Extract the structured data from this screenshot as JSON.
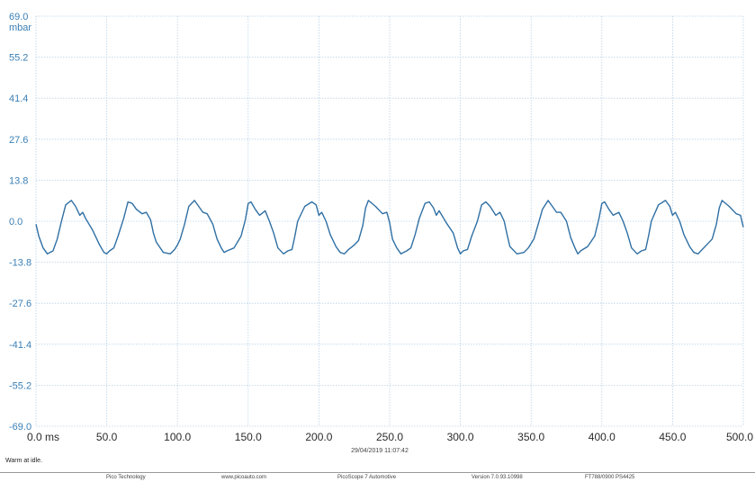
{
  "chart_data": {
    "type": "line",
    "y_unit": "mbar",
    "x_unit": "ms",
    "xlim": [
      0,
      500
    ],
    "ylim": [
      -69,
      69
    ],
    "grid": true,
    "y_ticks": [
      "69.0",
      "55.2",
      "41.4",
      "27.6",
      "13.8",
      "0.0",
      "-13.8",
      "-27.6",
      "-41.4",
      "-55.2",
      "-69.0"
    ],
    "x_ticks": [
      "0.0",
      "50.0",
      "100.0",
      "150.0",
      "200.0",
      "250.0",
      "300.0",
      "350.0",
      "400.0",
      "450.0",
      "500.0"
    ],
    "series": [
      {
        "color": "#2f6fa3",
        "x": [
          0,
          2,
          5,
          8,
          12,
          15,
          18,
          21,
          25,
          28,
          31,
          33,
          35,
          40,
          45,
          48,
          50,
          52,
          55,
          58,
          62,
          65,
          68,
          71,
          75,
          78,
          81,
          83,
          85,
          90,
          95,
          98,
          100,
          102,
          105,
          108,
          112,
          115,
          118,
          121,
          125,
          128,
          131,
          133,
          135,
          140,
          145,
          148,
          150,
          152,
          155,
          158,
          162,
          165,
          168,
          171,
          175,
          178,
          181,
          183,
          185,
          190,
          195,
          198,
          200,
          202,
          205,
          208,
          212,
          215,
          218,
          221,
          225,
          228,
          231,
          233,
          235,
          240,
          245,
          248,
          250,
          252,
          255,
          258,
          262,
          265,
          268,
          271,
          275,
          278,
          281,
          283,
          285,
          290,
          295,
          298,
          300,
          302,
          305,
          308,
          312,
          315,
          318,
          321,
          325,
          328,
          331,
          333,
          335,
          340,
          345,
          348,
          350,
          352,
          355,
          358,
          362,
          365,
          368,
          371,
          375,
          378,
          381,
          383,
          385,
          390,
          395,
          398,
          400,
          402,
          405,
          408,
          412,
          415,
          418,
          421,
          425,
          428,
          431,
          433,
          435,
          440,
          445,
          448,
          450,
          452,
          455,
          458,
          462,
          465,
          468,
          471,
          475,
          478,
          481,
          483,
          485,
          490,
          495,
          498,
          500
        ],
        "y": [
          -1.0,
          -5.0,
          -9.0,
          -11.0,
          -10.0,
          -6.0,
          0.0,
          5.5,
          7.0,
          5.0,
          2.0,
          3.0,
          1.0,
          -3.0,
          -8.0,
          -10.5,
          -11.0,
          -10.0,
          -9.0,
          -5.0,
          1.0,
          6.5,
          6.0,
          4.0,
          2.5,
          3.0,
          0.5,
          -4.0,
          -7.0,
          -10.5,
          -11.0,
          -9.5,
          -8.0,
          -6.0,
          -1.0,
          5.0,
          7.0,
          5.0,
          3.0,
          2.5,
          -1.0,
          -6.0,
          -9.0,
          -10.5,
          -10.0,
          -9.0,
          -5.0,
          0.5,
          6.0,
          6.5,
          4.0,
          2.0,
          3.5,
          0.0,
          -4.0,
          -9.0,
          -11.0,
          -10.0,
          -9.5,
          -5.0,
          0.0,
          5.0,
          6.5,
          5.5,
          2.0,
          3.0,
          0.0,
          -4.5,
          -8.5,
          -10.5,
          -11.0,
          -9.5,
          -8.0,
          -6.5,
          -1.5,
          4.5,
          7.0,
          5.0,
          2.5,
          3.0,
          -0.5,
          -6.0,
          -9.0,
          -11.0,
          -10.0,
          -9.0,
          -4.5,
          1.0,
          6.0,
          6.5,
          4.5,
          2.0,
          3.5,
          -0.5,
          -4.0,
          -9.0,
          -11.0,
          -10.0,
          -9.5,
          -5.0,
          0.0,
          5.5,
          6.5,
          5.0,
          2.0,
          3.0,
          0.0,
          -4.5,
          -8.5,
          -11.0,
          -10.5,
          -9.0,
          -7.5,
          -6.0,
          -1.0,
          4.0,
          7.0,
          5.0,
          3.0,
          3.0,
          0.0,
          -5.5,
          -9.0,
          -11.0,
          -10.0,
          -8.5,
          -5.0,
          1.0,
          6.0,
          6.5,
          4.0,
          2.0,
          3.0,
          0.0,
          -4.0,
          -9.0,
          -11.0,
          -10.0,
          -9.5,
          -5.0,
          0.0,
          5.5,
          7.0,
          5.0,
          2.0,
          3.0,
          0.0,
          -4.5,
          -8.5,
          -10.5,
          -11.0,
          -9.5,
          -7.5,
          -6.0,
          -1.0,
          4.5,
          7.0,
          5.0,
          2.5,
          2.0,
          -2.0
        ]
      }
    ]
  },
  "labels": {
    "y_unit": "mbar",
    "x_unit": "ms",
    "timestamp": "29/04/2019 11:07:42",
    "note": "Warm at idle."
  },
  "footer": {
    "company": "Pico Technology",
    "website": "www.picoauto.com",
    "product": "PicoScope 7 Automotive",
    "version": "Version 7.0.93.10998",
    "serial": "FT788/0900 PS4425"
  }
}
